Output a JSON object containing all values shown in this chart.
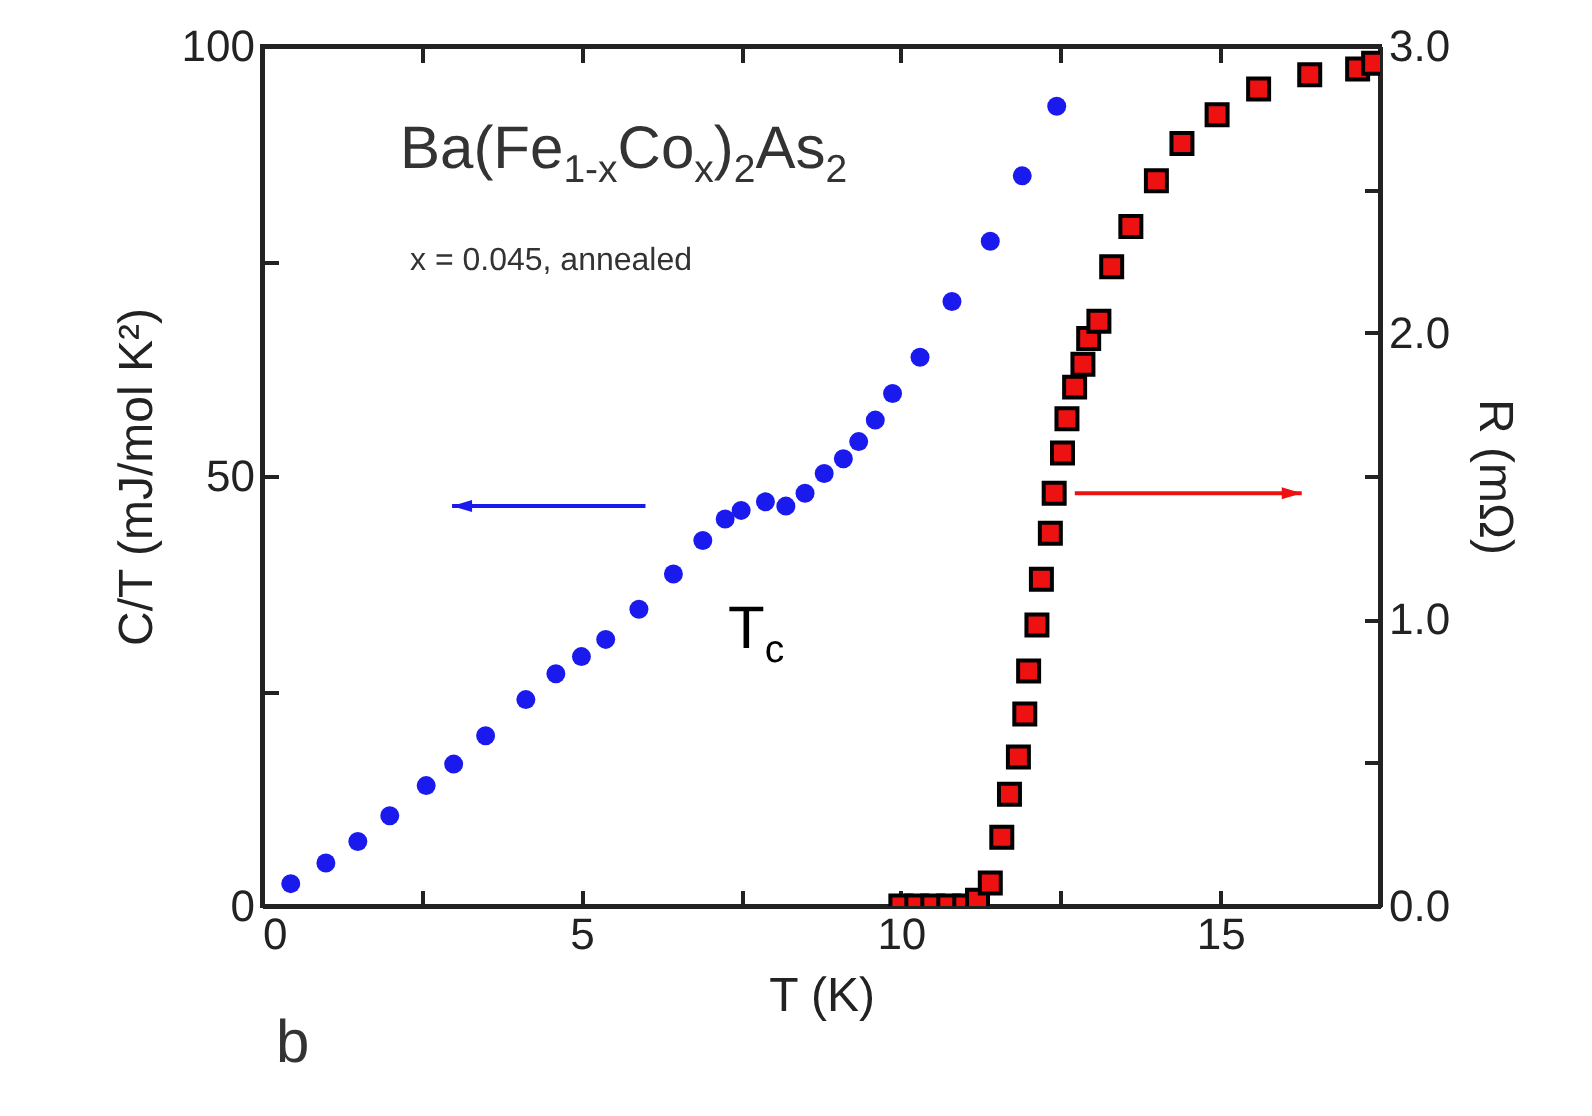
{
  "chart_data": {
    "type": "scatter",
    "xlabel": "T (K)",
    "ylabel": "C/T (mJ/mol K²)",
    "y2label": "R (mΩ)",
    "xlim": [
      0,
      17.5
    ],
    "xticks": [
      0,
      {
        "value": 2.5,
        "label": null
      },
      5,
      {
        "value": 7.5,
        "label": null
      },
      10,
      {
        "value": 12.5,
        "label": null
      },
      15
    ],
    "ylim": [
      0,
      100
    ],
    "yticks": [
      0,
      {
        "value": 25,
        "label": null
      },
      50,
      {
        "value": 75,
        "label": null
      },
      100
    ],
    "y2lim": [
      0,
      3
    ],
    "y2ticks": [
      {
        "value": 0,
        "label": "0.0"
      },
      {
        "value": 0.5,
        "label": null
      },
      {
        "value": 1,
        "label": "1.0"
      },
      {
        "value": 1.5,
        "label": null
      },
      {
        "value": 2,
        "label": "2.0"
      },
      {
        "value": 2.5,
        "label": null
      },
      {
        "value": 3,
        "label": "3.0"
      }
    ],
    "grid": false,
    "annotations": [
      "Ba(Fe$_{1-x}$Co$_{x}$)$_{2}$As$_{2}$",
      "x = 0.045, annealed",
      "T$_{c}$",
      "b"
    ],
    "series": [
      {
        "color": "#1a1aee",
        "marker": "circle",
        "x": [
          0.45,
          1.0,
          1.5,
          2.0,
          2.57,
          3.0,
          3.5,
          4.13,
          4.6,
          5.0,
          5.38,
          5.9,
          6.44,
          6.9,
          7.25,
          7.5,
          7.88,
          8.2,
          8.5,
          8.8,
          9.1,
          9.34,
          9.6,
          9.87,
          10.3,
          10.8,
          11.4,
          11.9,
          12.44
        ],
        "values": [
          2.6,
          5,
          7.5,
          10.5,
          14,
          16.5,
          19.8,
          24,
          27,
          29,
          31,
          34.5,
          38.6,
          42.5,
          45,
          46,
          47,
          46.5,
          48,
          50.3,
          52,
          54,
          56.5,
          59.6,
          63.8,
          70.3,
          77.3,
          84.9,
          93
        ]
      },
      {
        "color": "#ee1111",
        "marker": "square",
        "axis": "y2",
        "x": [
          10.0,
          10.25,
          10.5,
          10.75,
          11.0,
          11.2,
          11.4,
          11.58,
          11.7,
          11.84,
          11.94,
          12.0,
          12.13,
          12.2,
          12.34,
          12.4,
          12.53,
          12.6,
          12.72,
          12.85,
          12.94,
          13.1,
          13.3,
          13.6,
          14.0,
          14.4,
          14.95,
          15.6,
          16.4,
          17.15,
          17.4
        ],
        "values": [
          0,
          0,
          0,
          0,
          0,
          0.02,
          0.08,
          0.24,
          0.39,
          0.52,
          0.67,
          0.82,
          0.98,
          1.14,
          1.3,
          1.44,
          1.58,
          1.7,
          1.81,
          1.89,
          1.98,
          2.04,
          2.23,
          2.37,
          2.53,
          2.66,
          2.76,
          2.85,
          2.9,
          2.92,
          2.94
        ]
      }
    ]
  }
}
